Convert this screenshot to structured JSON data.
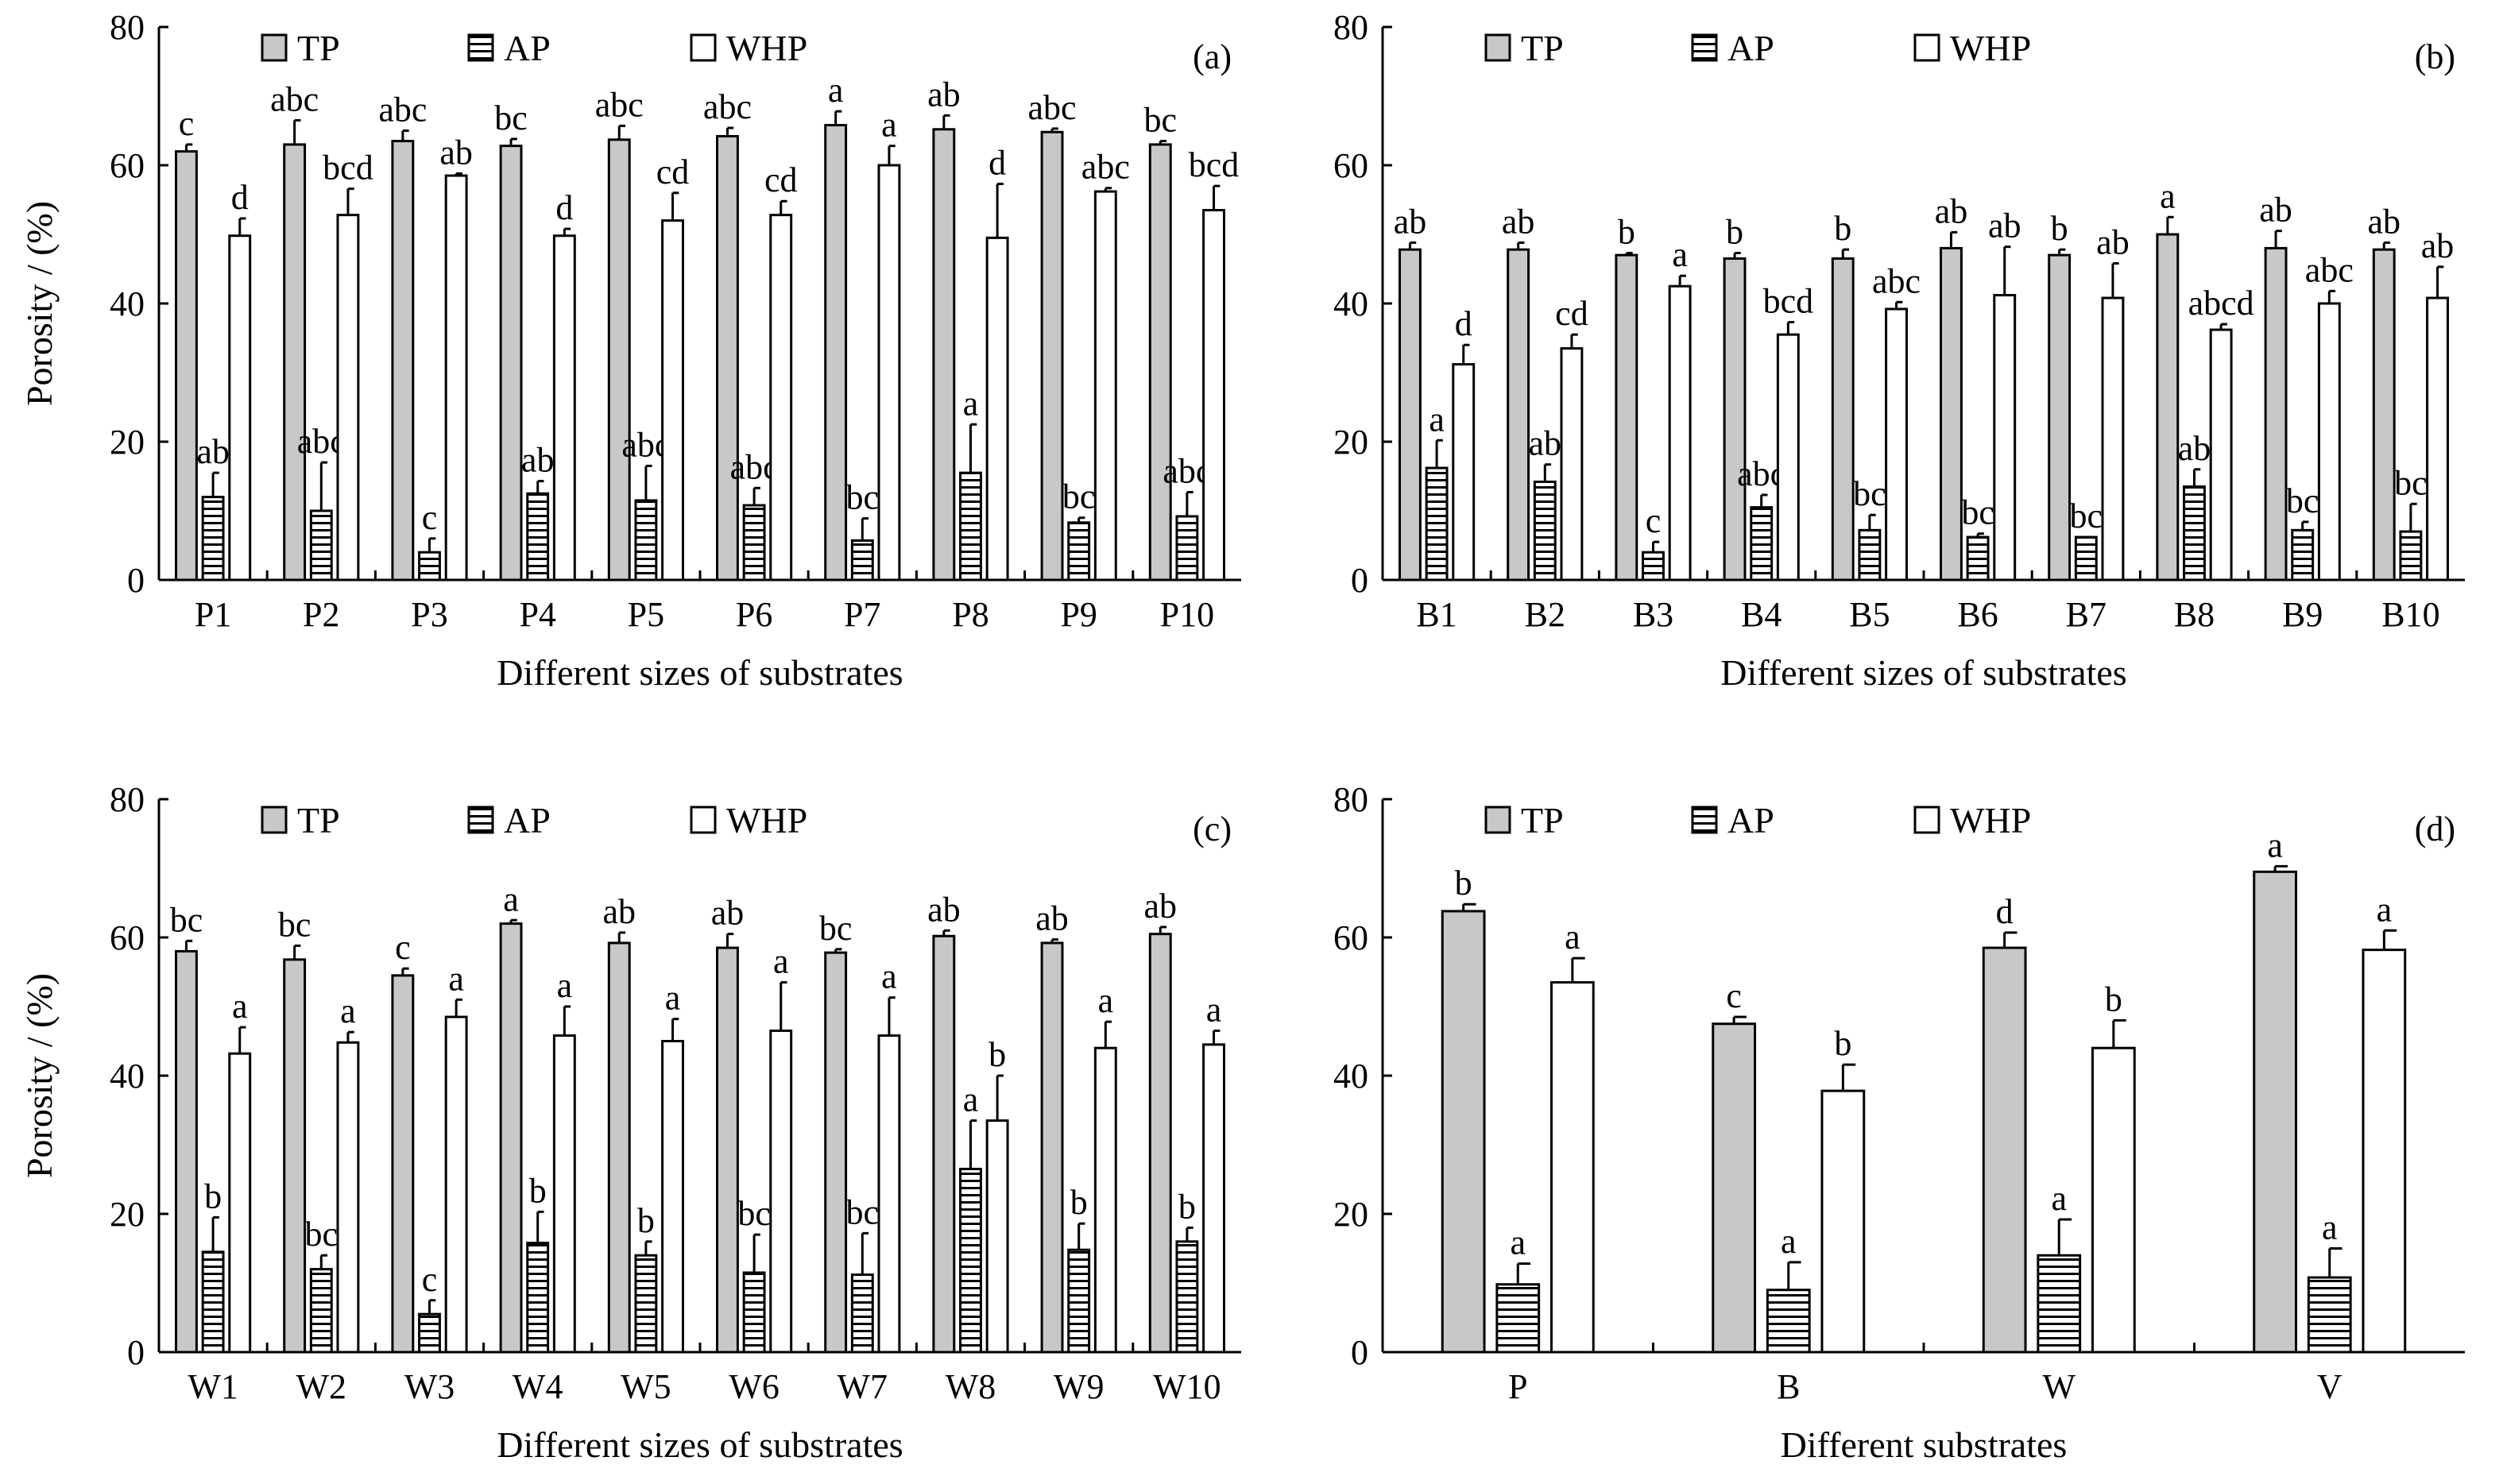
{
  "colors": {
    "TP": "#c8c8c8",
    "AP_stripe": "#000000",
    "WHP": "#ffffff",
    "axis": "#000000"
  },
  "chart_data": [
    {
      "type": "bar",
      "panel": "(a)",
      "xlabel": "Different sizes of substrates",
      "ylabel": "Porosity / (%)",
      "ylim": [
        0,
        80
      ],
      "yticks": [
        0,
        20,
        40,
        60,
        80
      ],
      "grid": false,
      "legend_placement": "top",
      "categories": [
        "P1",
        "P2",
        "P3",
        "P4",
        "P5",
        "P6",
        "P7",
        "P8",
        "P9",
        "P10"
      ],
      "series": [
        {
          "name": "TP",
          "values": [
            62,
            63,
            63.5,
            62.8,
            63.7,
            64.2,
            65.8,
            65.2,
            64.8,
            63
          ],
          "errors": [
            1,
            3.5,
            1.5,
            1,
            2,
            1.2,
            2,
            2,
            0.5,
            0.5
          ],
          "letters": [
            "c",
            "abc",
            "abc",
            "bc",
            "abc",
            "abc",
            "a",
            "ab",
            "abc",
            "bc"
          ]
        },
        {
          "name": "AP",
          "values": [
            12,
            10,
            4,
            12.5,
            11.5,
            10.8,
            5.7,
            15.5,
            8.3,
            9.2
          ],
          "errors": [
            3.5,
            7,
            2,
            1.8,
            5,
            2.5,
            3.2,
            7,
            0.7,
            3.5
          ],
          "letters": [
            "ab",
            "abc",
            "c",
            "ab",
            "abc",
            "abc",
            "bc",
            "a",
            "bc",
            "abc"
          ]
        },
        {
          "name": "WHP",
          "values": [
            49.8,
            52.8,
            58.5,
            49.8,
            52,
            52.8,
            60,
            49.5,
            56.2,
            53.5
          ],
          "errors": [
            2.5,
            3.8,
            0.3,
            1,
            4,
            2,
            2.8,
            7.8,
            0.5,
            3.5
          ],
          "letters": [
            "d",
            "bcd",
            "ab",
            "d",
            "cd",
            "cd",
            "a",
            "d",
            "abc",
            "bcd"
          ]
        }
      ]
    },
    {
      "type": "bar",
      "panel": "(b)",
      "xlabel": "Different sizes of substrates",
      "ylabel": "",
      "ylim": [
        0,
        80
      ],
      "yticks": [
        0,
        20,
        40,
        60,
        80
      ],
      "grid": false,
      "legend_placement": "top",
      "categories": [
        "B1",
        "B2",
        "B3",
        "B4",
        "B5",
        "B6",
        "B7",
        "B8",
        "B9",
        "B10"
      ],
      "series": [
        {
          "name": "TP",
          "values": [
            47.8,
            47.8,
            47,
            46.5,
            46.5,
            48,
            47,
            50,
            48,
            47.8
          ],
          "errors": [
            1,
            1,
            0.3,
            0.8,
            1.3,
            2.3,
            0.8,
            2.5,
            2.5,
            1
          ],
          "letters": [
            "ab",
            "ab",
            "b",
            "b",
            "b",
            "ab",
            "b",
            "a",
            "ab",
            "ab"
          ]
        },
        {
          "name": "AP",
          "values": [
            16.2,
            14.2,
            4,
            10.5,
            7.2,
            6.2,
            6.2,
            13.5,
            7.2,
            7
          ],
          "errors": [
            4,
            2.5,
            1.5,
            1.8,
            2.2,
            0.5,
            0,
            2.5,
            1.2,
            4
          ],
          "letters": [
            "a",
            "ab",
            "c",
            "abc",
            "bc",
            "bc",
            "bc",
            "ab",
            "bc",
            "bc"
          ]
        },
        {
          "name": "WHP",
          "values": [
            31.2,
            33.5,
            42.5,
            35.5,
            39.2,
            41.2,
            40.8,
            36.2,
            40,
            40.8
          ],
          "errors": [
            2.8,
            2,
            1.5,
            1.8,
            1,
            7,
            5,
            0.8,
            1.8,
            4.5
          ],
          "letters": [
            "d",
            "cd",
            "a",
            "bcd",
            "abc",
            "ab",
            "ab",
            "abcd",
            "abc",
            "ab"
          ]
        }
      ]
    },
    {
      "type": "bar",
      "panel": "(c)",
      "xlabel": "Different sizes of substrates",
      "ylabel": "Porosity / (%)",
      "ylim": [
        0,
        80
      ],
      "yticks": [
        0,
        20,
        40,
        60,
        80
      ],
      "grid": false,
      "legend_placement": "top",
      "categories": [
        "W1",
        "W2",
        "W3",
        "W4",
        "W5",
        "W6",
        "W7",
        "W8",
        "W9",
        "W10"
      ],
      "series": [
        {
          "name": "TP",
          "values": [
            58,
            56.8,
            54.5,
            62,
            59.2,
            58.5,
            57.8,
            60.2,
            59.2,
            60.5
          ],
          "errors": [
            1.5,
            2,
            1,
            0.5,
            1.5,
            2,
            0.5,
            0.8,
            0.5,
            1
          ],
          "letters": [
            "bc",
            "bc",
            "c",
            "a",
            "ab",
            "ab",
            "bc",
            "ab",
            "ab",
            "ab"
          ]
        },
        {
          "name": "AP",
          "values": [
            14.5,
            12,
            5.5,
            15.8,
            14,
            11.5,
            11.2,
            26.5,
            14.8,
            16
          ],
          "errors": [
            5,
            2,
            2,
            4.5,
            2,
            5.5,
            6,
            7,
            3.8,
            2
          ],
          "letters": [
            "b",
            "bc",
            "c",
            "b",
            "b",
            "bc",
            "bc",
            "a",
            "b",
            "b"
          ]
        },
        {
          "name": "WHP",
          "values": [
            43.2,
            44.8,
            48.5,
            45.8,
            45,
            46.5,
            45.8,
            33.5,
            44,
            44.5
          ],
          "errors": [
            3.8,
            1.5,
            2.5,
            4.2,
            3.2,
            7,
            5.5,
            6.5,
            3.8,
            2
          ],
          "letters": [
            "a",
            "a",
            "a",
            "a",
            "a",
            "a",
            "a",
            "b",
            "a",
            "a"
          ]
        }
      ]
    },
    {
      "type": "bar",
      "panel": "(d)",
      "xlabel": "Different substrates",
      "ylabel": "",
      "ylim": [
        0,
        80
      ],
      "yticks": [
        0,
        20,
        40,
        60,
        80
      ],
      "grid": false,
      "legend_placement": "top",
      "categories": [
        "P",
        "B",
        "W",
        "V"
      ],
      "series": [
        {
          "name": "TP",
          "values": [
            63.8,
            47.5,
            58.5,
            69.5
          ],
          "errors": [
            1,
            1,
            2.2,
            0.8
          ],
          "letters": [
            "b",
            "c",
            "d",
            "a"
          ]
        },
        {
          "name": "AP",
          "values": [
            9.8,
            9,
            14,
            10.8
          ],
          "errors": [
            3,
            4,
            5.2,
            4.2
          ],
          "letters": [
            "a",
            "a",
            "a",
            "a"
          ]
        },
        {
          "name": "WHP",
          "values": [
            53.5,
            37.8,
            44,
            58.2
          ],
          "errors": [
            3.5,
            3.8,
            4,
            2.8
          ],
          "letters": [
            "a",
            "b",
            "b",
            "a"
          ]
        }
      ]
    }
  ]
}
